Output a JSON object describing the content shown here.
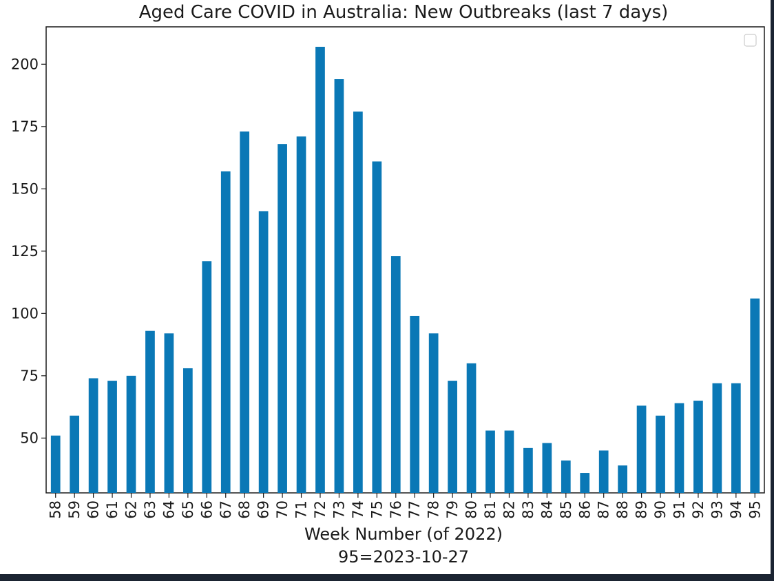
{
  "chart_data": {
    "type": "bar",
    "title": "Aged Care COVID in Australia: New Outbreaks (last 7 days)",
    "xlabel": "Week Number (of 2022)",
    "xlabel_line2": "95=2023-10-27",
    "ylabel": "",
    "categories": [
      "58",
      "59",
      "60",
      "61",
      "62",
      "63",
      "64",
      "65",
      "66",
      "67",
      "68",
      "69",
      "70",
      "71",
      "72",
      "73",
      "74",
      "75",
      "76",
      "77",
      "78",
      "79",
      "80",
      "81",
      "82",
      "83",
      "84",
      "85",
      "86",
      "87",
      "88",
      "89",
      "90",
      "91",
      "92",
      "93",
      "94",
      "95"
    ],
    "values": [
      51,
      59,
      74,
      73,
      75,
      93,
      92,
      78,
      121,
      157,
      173,
      141,
      168,
      171,
      207,
      194,
      181,
      161,
      123,
      99,
      92,
      73,
      80,
      53,
      53,
      46,
      48,
      41,
      36,
      45,
      39,
      63,
      59,
      64,
      65,
      72,
      72,
      106
    ],
    "ylim": [
      28,
      215
    ],
    "yticks": [
      "50",
      "75",
      "100",
      "125",
      "150",
      "175",
      "200"
    ],
    "bar_color": "#0a78b6",
    "grid": false,
    "legend": "top-right (empty)"
  }
}
